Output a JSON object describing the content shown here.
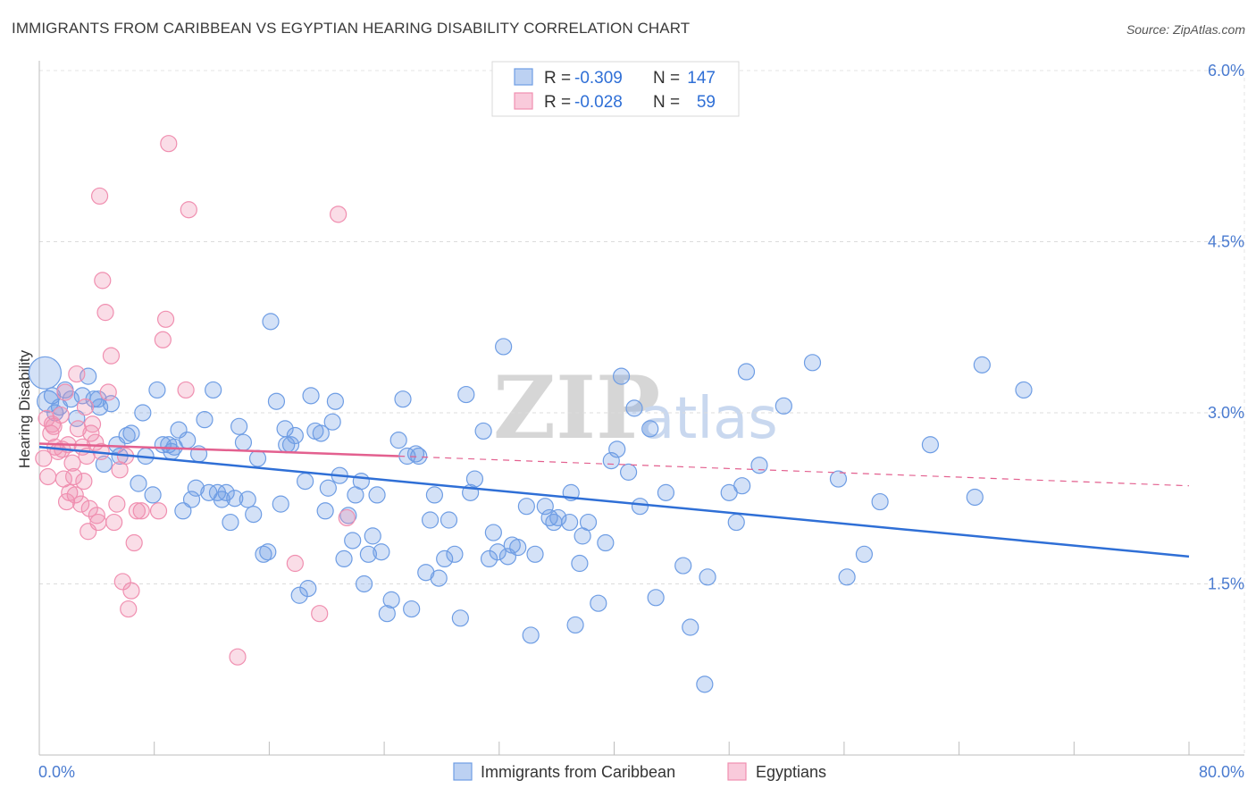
{
  "header": {
    "title": "IMMIGRANTS FROM CARIBBEAN VS EGYPTIAN HEARING DISABILITY CORRELATION CHART",
    "source": "Source: ZipAtlas.com"
  },
  "watermark": {
    "zip": "ZIP",
    "atlas": "atlas"
  },
  "legend": {
    "rows": [
      {
        "r_label": "R =",
        "r_value": "-0.309",
        "n_label": "N =",
        "n_value": "147",
        "color": "#6e9de4"
      },
      {
        "r_label": "R =",
        "r_value": "-0.028",
        "n_label": "N =",
        "n_value": "59",
        "color": "#f08fb0"
      }
    ]
  },
  "bottom_legend": {
    "items": [
      {
        "label": "Immigrants from Caribbean",
        "color": "#6e9de4"
      },
      {
        "label": "Egyptians",
        "color": "#f08fb0"
      }
    ]
  },
  "chart_data": {
    "type": "scatter",
    "title": "IMMIGRANTS FROM CARIBBEAN VS EGYPTIAN HEARING DISABILITY CORRELATION CHART",
    "xlabel": "",
    "ylabel": "Hearing Disability",
    "xlim": [
      0,
      80
    ],
    "ylim": [
      0,
      6.2
    ],
    "x_tick_labels": [
      "0.0%",
      "80.0%"
    ],
    "y_ticks": [
      1.5,
      3.0,
      4.5,
      6.0
    ],
    "y_tick_labels": [
      "1.5%",
      "3.0%",
      "4.5%",
      "6.0%"
    ],
    "grid": true,
    "series": [
      {
        "name": "Immigrants from Caribbean",
        "color": "#6e9de4",
        "line_color": "#2f6fd6",
        "trend": {
          "x": [
            0,
            80
          ],
          "y": [
            2.7,
            1.74
          ]
        },
        "points": [
          [
            0.4,
            3.35
          ],
          [
            0.6,
            3.1
          ],
          [
            0.9,
            3.15
          ],
          [
            1.1,
            3.0
          ],
          [
            1.4,
            3.05
          ],
          [
            1.8,
            3.2
          ],
          [
            2.2,
            3.12
          ],
          [
            2.6,
            2.95
          ],
          [
            3.0,
            3.15
          ],
          [
            3.4,
            3.32
          ],
          [
            3.8,
            3.12
          ],
          [
            4.2,
            3.05
          ],
          [
            4.5,
            2.55
          ],
          [
            5.0,
            3.08
          ],
          [
            5.4,
            2.72
          ],
          [
            5.6,
            2.62
          ],
          [
            6.1,
            2.8
          ],
          [
            6.4,
            2.82
          ],
          [
            6.9,
            2.38
          ],
          [
            7.2,
            3.0
          ],
          [
            7.4,
            2.62
          ],
          [
            7.9,
            2.28
          ],
          [
            8.2,
            3.2
          ],
          [
            8.6,
            2.72
          ],
          [
            9.0,
            2.72
          ],
          [
            9.4,
            2.7
          ],
          [
            9.7,
            2.85
          ],
          [
            10.0,
            2.14
          ],
          [
            10.3,
            2.76
          ],
          [
            10.6,
            2.24
          ],
          [
            10.9,
            2.34
          ],
          [
            11.1,
            2.64
          ],
          [
            11.5,
            2.94
          ],
          [
            11.8,
            2.3
          ],
          [
            12.1,
            3.2
          ],
          [
            12.4,
            2.3
          ],
          [
            12.7,
            2.24
          ],
          [
            13.0,
            2.3
          ],
          [
            13.3,
            2.04
          ],
          [
            13.6,
            2.25
          ],
          [
            13.9,
            2.88
          ],
          [
            14.2,
            2.74
          ],
          [
            14.5,
            2.24
          ],
          [
            14.9,
            2.11
          ],
          [
            15.2,
            2.6
          ],
          [
            15.6,
            1.76
          ],
          [
            15.9,
            1.78
          ],
          [
            16.1,
            3.8
          ],
          [
            16.5,
            3.1
          ],
          [
            16.8,
            2.2
          ],
          [
            17.2,
            2.72
          ],
          [
            17.5,
            2.72
          ],
          [
            17.8,
            2.8
          ],
          [
            18.1,
            1.4
          ],
          [
            18.5,
            2.4
          ],
          [
            18.7,
            1.46
          ],
          [
            18.9,
            3.15
          ],
          [
            19.2,
            2.84
          ],
          [
            19.6,
            2.82
          ],
          [
            19.9,
            2.14
          ],
          [
            20.1,
            2.34
          ],
          [
            20.4,
            2.92
          ],
          [
            20.6,
            3.1
          ],
          [
            20.9,
            2.45
          ],
          [
            21.2,
            1.72
          ],
          [
            21.5,
            2.1
          ],
          [
            21.8,
            1.88
          ],
          [
            22.0,
            2.28
          ],
          [
            22.4,
            2.4
          ],
          [
            22.6,
            1.5
          ],
          [
            22.9,
            1.76
          ],
          [
            23.2,
            1.92
          ],
          [
            23.5,
            2.28
          ],
          [
            23.8,
            1.78
          ],
          [
            24.2,
            1.24
          ],
          [
            24.5,
            1.36
          ],
          [
            25.0,
            2.76
          ],
          [
            25.3,
            3.12
          ],
          [
            25.6,
            2.62
          ],
          [
            25.9,
            1.28
          ],
          [
            26.2,
            2.64
          ],
          [
            26.9,
            1.6
          ],
          [
            27.2,
            2.06
          ],
          [
            27.5,
            2.28
          ],
          [
            27.8,
            1.55
          ],
          [
            28.2,
            1.72
          ],
          [
            28.5,
            2.06
          ],
          [
            28.9,
            1.76
          ],
          [
            29.3,
            1.2
          ],
          [
            29.7,
            3.16
          ],
          [
            30.0,
            2.3
          ],
          [
            30.3,
            2.42
          ],
          [
            30.9,
            2.84
          ],
          [
            31.3,
            1.72
          ],
          [
            31.6,
            1.95
          ],
          [
            31.9,
            1.78
          ],
          [
            32.3,
            3.58
          ],
          [
            32.6,
            1.74
          ],
          [
            32.9,
            1.84
          ],
          [
            33.9,
            2.18
          ],
          [
            34.2,
            1.05
          ],
          [
            34.5,
            1.76
          ],
          [
            35.2,
            2.18
          ],
          [
            35.5,
            2.08
          ],
          [
            35.8,
            2.04
          ],
          [
            36.1,
            2.08
          ],
          [
            36.9,
            2.04
          ],
          [
            37.3,
            1.14
          ],
          [
            37.6,
            1.68
          ],
          [
            37.8,
            1.92
          ],
          [
            38.2,
            2.04
          ],
          [
            38.9,
            1.33
          ],
          [
            39.4,
            1.86
          ],
          [
            39.8,
            2.58
          ],
          [
            40.2,
            2.68
          ],
          [
            40.5,
            3.32
          ],
          [
            41.0,
            2.48
          ],
          [
            41.4,
            3.04
          ],
          [
            41.8,
            2.18
          ],
          [
            42.5,
            2.86
          ],
          [
            42.9,
            1.38
          ],
          [
            43.6,
            2.3
          ],
          [
            44.8,
            1.66
          ],
          [
            45.3,
            1.12
          ],
          [
            46.3,
            0.62
          ],
          [
            46.5,
            1.56
          ],
          [
            48.0,
            2.3
          ],
          [
            48.5,
            2.04
          ],
          [
            48.9,
            2.36
          ],
          [
            49.2,
            3.36
          ],
          [
            50.1,
            2.54
          ],
          [
            51.8,
            3.06
          ],
          [
            53.8,
            3.44
          ],
          [
            55.6,
            2.42
          ],
          [
            56.2,
            1.56
          ],
          [
            57.4,
            1.76
          ],
          [
            58.5,
            2.22
          ],
          [
            62.0,
            2.72
          ],
          [
            65.1,
            2.26
          ],
          [
            65.6,
            3.42
          ],
          [
            68.5,
            3.2
          ],
          [
            4.1,
            3.12
          ],
          [
            9.2,
            2.66
          ],
          [
            17.1,
            2.86
          ],
          [
            26.4,
            2.62
          ],
          [
            33.3,
            1.82
          ],
          [
            37.0,
            2.3
          ]
        ]
      },
      {
        "name": "Egyptians",
        "color": "#f08fb0",
        "line_color": "#e3608f",
        "trend": {
          "x": [
            0,
            25
          ],
          "y": [
            2.73,
            2.62
          ]
        },
        "trend_ext": {
          "x": [
            25,
            80
          ],
          "y": [
            2.62,
            2.36
          ]
        },
        "points": [
          [
            0.3,
            2.6
          ],
          [
            0.5,
            2.95
          ],
          [
            0.6,
            2.44
          ],
          [
            0.8,
            2.82
          ],
          [
            1.0,
            2.88
          ],
          [
            1.1,
            2.7
          ],
          [
            1.3,
            2.66
          ],
          [
            1.5,
            2.98
          ],
          [
            1.7,
            2.42
          ],
          [
            1.8,
            3.18
          ],
          [
            1.9,
            2.22
          ],
          [
            2.0,
            2.72
          ],
          [
            2.1,
            2.3
          ],
          [
            2.3,
            2.56
          ],
          [
            2.4,
            2.44
          ],
          [
            2.5,
            2.28
          ],
          [
            2.6,
            3.34
          ],
          [
            2.7,
            2.86
          ],
          [
            2.9,
            2.2
          ],
          [
            3.0,
            2.7
          ],
          [
            3.1,
            2.4
          ],
          [
            3.2,
            3.05
          ],
          [
            3.3,
            2.62
          ],
          [
            3.4,
            1.96
          ],
          [
            3.5,
            2.16
          ],
          [
            3.6,
            2.82
          ],
          [
            3.7,
            2.9
          ],
          [
            3.9,
            2.74
          ],
          [
            4.0,
            2.1
          ],
          [
            4.1,
            2.04
          ],
          [
            4.2,
            4.9
          ],
          [
            4.3,
            2.66
          ],
          [
            4.4,
            4.16
          ],
          [
            4.6,
            3.88
          ],
          [
            4.8,
            3.18
          ],
          [
            5.0,
            3.5
          ],
          [
            5.2,
            2.04
          ],
          [
            5.4,
            2.2
          ],
          [
            5.6,
            2.5
          ],
          [
            5.8,
            1.52
          ],
          [
            6.0,
            2.62
          ],
          [
            6.2,
            1.28
          ],
          [
            6.4,
            1.44
          ],
          [
            6.6,
            1.86
          ],
          [
            6.8,
            2.14
          ],
          [
            7.1,
            2.14
          ],
          [
            8.3,
            2.14
          ],
          [
            8.6,
            3.64
          ],
          [
            8.8,
            3.82
          ],
          [
            9.0,
            5.36
          ],
          [
            10.2,
            3.2
          ],
          [
            10.4,
            4.78
          ],
          [
            13.8,
            0.86
          ],
          [
            17.8,
            1.68
          ],
          [
            19.5,
            1.24
          ],
          [
            20.8,
            4.74
          ],
          [
            21.4,
            2.08
          ],
          [
            0.9,
            2.9
          ],
          [
            1.6,
            2.68
          ]
        ]
      }
    ]
  }
}
